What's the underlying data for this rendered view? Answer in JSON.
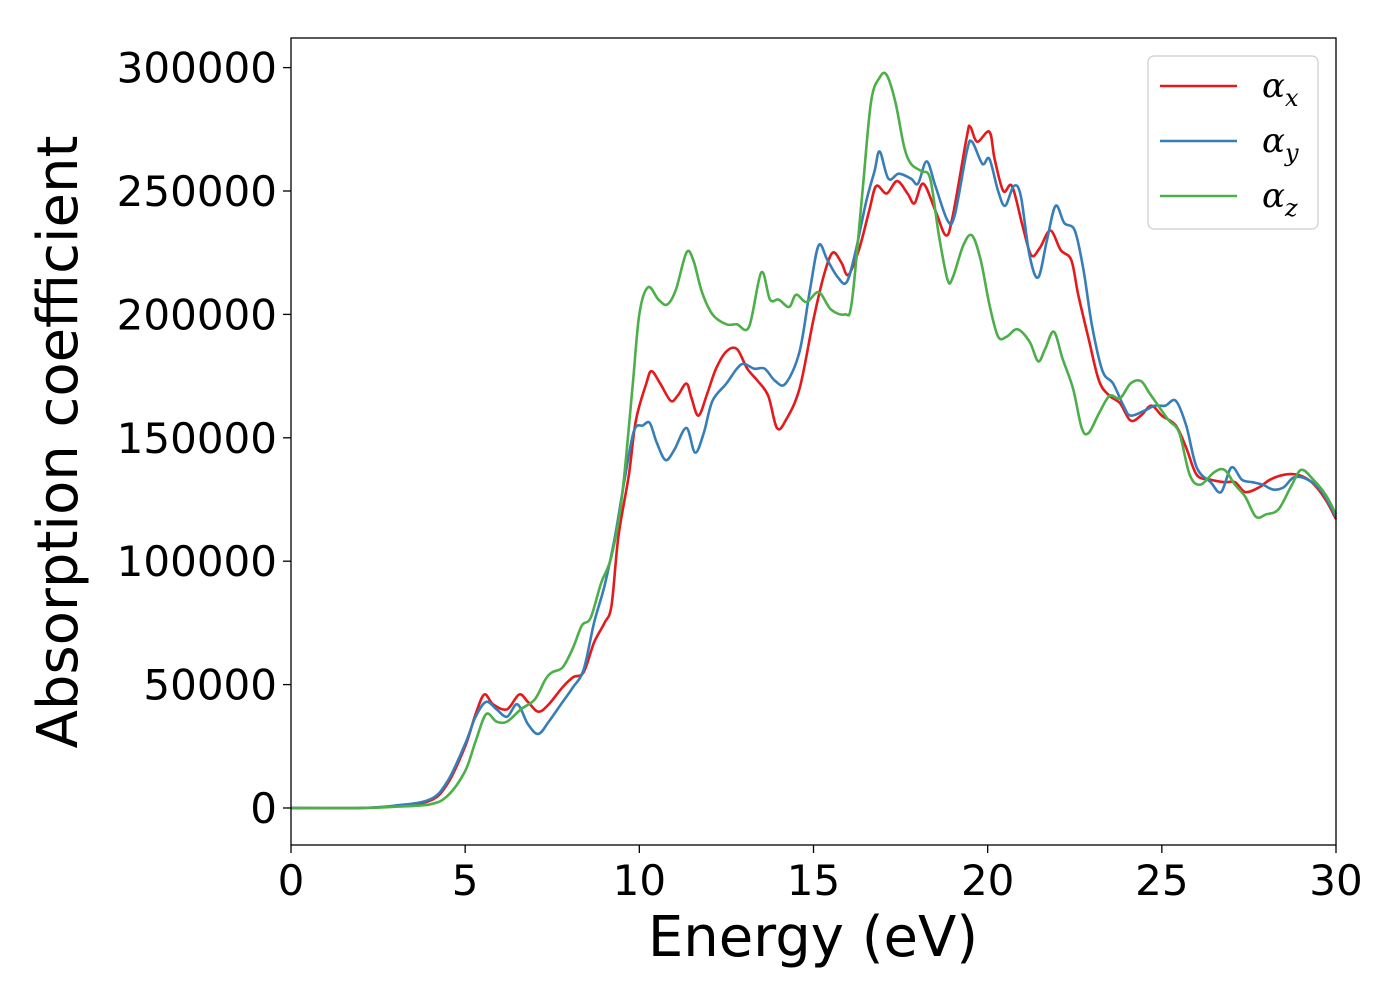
{
  "chart_data": {
    "type": "line",
    "xlabel": "Energy (eV)",
    "ylabel": "Absorption coefficient",
    "xlim": [
      0,
      30
    ],
    "ylim": [
      -15000,
      312000
    ],
    "xticks": [
      0,
      5,
      10,
      15,
      20,
      25,
      30
    ],
    "xtick_labels": [
      "0",
      "5",
      "10",
      "15",
      "20",
      "25",
      "30"
    ],
    "yticks": [
      0,
      50000,
      100000,
      150000,
      200000,
      250000,
      300000
    ],
    "ytick_labels": [
      "0",
      "50000",
      "100000",
      "150000",
      "200000",
      "250000",
      "300000"
    ],
    "grid": false,
    "legend_position": "top-right",
    "series": [
      {
        "name": "α_x",
        "label_main": "α",
        "label_sub": "x",
        "color": "#e41a1c",
        "points": [
          [
            0,
            0
          ],
          [
            2,
            0
          ],
          [
            3,
            800
          ],
          [
            4,
            3000
          ],
          [
            4.5,
            10000
          ],
          [
            5,
            25000
          ],
          [
            5.3,
            38000
          ],
          [
            5.55,
            46000
          ],
          [
            5.8,
            42000
          ],
          [
            6.2,
            40000
          ],
          [
            6.55,
            46000
          ],
          [
            6.8,
            43000
          ],
          [
            7.1,
            39000
          ],
          [
            7.4,
            42000
          ],
          [
            7.8,
            49000
          ],
          [
            8.1,
            53000
          ],
          [
            8.4,
            55000
          ],
          [
            8.7,
            67000
          ],
          [
            9.0,
            75000
          ],
          [
            9.2,
            82000
          ],
          [
            9.4,
            110000
          ],
          [
            9.7,
            135000
          ],
          [
            9.9,
            157000
          ],
          [
            10.2,
            172000
          ],
          [
            10.35,
            177000
          ],
          [
            10.6,
            172000
          ],
          [
            10.9,
            165000
          ],
          [
            11.1,
            167000
          ],
          [
            11.35,
            172000
          ],
          [
            11.5,
            166000
          ],
          [
            11.7,
            159000
          ],
          [
            11.95,
            168000
          ],
          [
            12.2,
            178000
          ],
          [
            12.5,
            185000
          ],
          [
            12.8,
            186000
          ],
          [
            13.1,
            178000
          ],
          [
            13.4,
            173000
          ],
          [
            13.7,
            167000
          ],
          [
            13.95,
            154000
          ],
          [
            14.2,
            157000
          ],
          [
            14.6,
            170000
          ],
          [
            15.0,
            198000
          ],
          [
            15.3,
            216000
          ],
          [
            15.55,
            225000
          ],
          [
            15.8,
            221000
          ],
          [
            16.0,
            216000
          ],
          [
            16.3,
            226000
          ],
          [
            16.6,
            242000
          ],
          [
            16.8,
            252000
          ],
          [
            17.1,
            249000
          ],
          [
            17.4,
            254000
          ],
          [
            17.7,
            249000
          ],
          [
            17.9,
            245000
          ],
          [
            18.15,
            253000
          ],
          [
            18.5,
            242000
          ],
          [
            18.8,
            232000
          ],
          [
            19.0,
            240000
          ],
          [
            19.4,
            272000
          ],
          [
            19.5,
            276000
          ],
          [
            19.7,
            270000
          ],
          [
            20.05,
            274000
          ],
          [
            20.2,
            263000
          ],
          [
            20.45,
            250000
          ],
          [
            20.7,
            252000
          ],
          [
            21.0,
            236000
          ],
          [
            21.25,
            224000
          ],
          [
            21.5,
            227000
          ],
          [
            21.8,
            234000
          ],
          [
            22.1,
            226000
          ],
          [
            22.4,
            222000
          ],
          [
            22.6,
            208000
          ],
          [
            22.9,
            190000
          ],
          [
            23.2,
            173000
          ],
          [
            23.5,
            167000
          ],
          [
            23.8,
            164000
          ],
          [
            24.1,
            157000
          ],
          [
            24.4,
            159000
          ],
          [
            24.7,
            163000
          ],
          [
            25.0,
            159000
          ],
          [
            25.4,
            155000
          ],
          [
            25.7,
            146000
          ],
          [
            26.0,
            135000
          ],
          [
            26.4,
            133000
          ],
          [
            26.8,
            132000
          ],
          [
            27.1,
            132000
          ],
          [
            27.4,
            128000
          ],
          [
            27.8,
            130000
          ],
          [
            28.1,
            133000
          ],
          [
            28.5,
            135000
          ],
          [
            28.9,
            135000
          ],
          [
            29.3,
            132000
          ],
          [
            29.7,
            125000
          ],
          [
            30,
            117000
          ]
        ]
      },
      {
        "name": "α_y",
        "label_main": "α",
        "label_sub": "y",
        "color": "#377eb8",
        "points": [
          [
            0,
            0
          ],
          [
            2,
            0
          ],
          [
            3,
            1000
          ],
          [
            4,
            3500
          ],
          [
            4.5,
            11000
          ],
          [
            5,
            26000
          ],
          [
            5.3,
            37000
          ],
          [
            5.6,
            43000
          ],
          [
            5.9,
            40000
          ],
          [
            6.2,
            37000
          ],
          [
            6.5,
            42000
          ],
          [
            6.8,
            34000
          ],
          [
            7.1,
            30000
          ],
          [
            7.4,
            35000
          ],
          [
            7.8,
            43000
          ],
          [
            8.1,
            49000
          ],
          [
            8.4,
            56000
          ],
          [
            8.7,
            75000
          ],
          [
            9.0,
            90000
          ],
          [
            9.3,
            110000
          ],
          [
            9.6,
            135000
          ],
          [
            9.85,
            153000
          ],
          [
            10.1,
            155000
          ],
          [
            10.3,
            156000
          ],
          [
            10.5,
            148000
          ],
          [
            10.75,
            141000
          ],
          [
            11.0,
            145000
          ],
          [
            11.35,
            154000
          ],
          [
            11.6,
            144000
          ],
          [
            11.85,
            152000
          ],
          [
            12.1,
            165000
          ],
          [
            12.5,
            172000
          ],
          [
            12.8,
            178000
          ],
          [
            13.0,
            180000
          ],
          [
            13.3,
            178000
          ],
          [
            13.6,
            178000
          ],
          [
            13.9,
            173000
          ],
          [
            14.2,
            172000
          ],
          [
            14.6,
            185000
          ],
          [
            14.9,
            210000
          ],
          [
            15.15,
            228000
          ],
          [
            15.4,
            222000
          ],
          [
            15.7,
            215000
          ],
          [
            15.95,
            213000
          ],
          [
            16.2,
            225000
          ],
          [
            16.5,
            245000
          ],
          [
            16.75,
            258000
          ],
          [
            16.9,
            266000
          ],
          [
            17.15,
            255000
          ],
          [
            17.45,
            257000
          ],
          [
            17.8,
            255000
          ],
          [
            18.0,
            253000
          ],
          [
            18.25,
            262000
          ],
          [
            18.5,
            252000
          ],
          [
            18.85,
            238000
          ],
          [
            19.05,
            240000
          ],
          [
            19.4,
            266000
          ],
          [
            19.55,
            270000
          ],
          [
            19.85,
            261000
          ],
          [
            20.05,
            263000
          ],
          [
            20.3,
            250000
          ],
          [
            20.5,
            244000
          ],
          [
            20.75,
            252000
          ],
          [
            20.95,
            248000
          ],
          [
            21.2,
            224000
          ],
          [
            21.45,
            215000
          ],
          [
            21.7,
            230000
          ],
          [
            21.95,
            244000
          ],
          [
            22.2,
            237000
          ],
          [
            22.5,
            234000
          ],
          [
            22.75,
            218000
          ],
          [
            23.0,
            195000
          ],
          [
            23.3,
            177000
          ],
          [
            23.6,
            172000
          ],
          [
            23.9,
            163000
          ],
          [
            24.1,
            159000
          ],
          [
            24.5,
            161000
          ],
          [
            24.8,
            163000
          ],
          [
            25.1,
            163000
          ],
          [
            25.4,
            165000
          ],
          [
            25.7,
            155000
          ],
          [
            26.0,
            138000
          ],
          [
            26.4,
            132000
          ],
          [
            26.7,
            128000
          ],
          [
            27.0,
            138000
          ],
          [
            27.3,
            133000
          ],
          [
            27.6,
            132000
          ],
          [
            27.9,
            131000
          ],
          [
            28.2,
            129000
          ],
          [
            28.5,
            130000
          ],
          [
            28.8,
            134000
          ],
          [
            29.2,
            133000
          ],
          [
            29.6,
            128000
          ],
          [
            30,
            118000
          ]
        ]
      },
      {
        "name": "α_z",
        "label_main": "α",
        "label_sub": "z",
        "color": "#4daf4a",
        "points": [
          [
            0,
            0
          ],
          [
            2,
            0
          ],
          [
            3,
            500
          ],
          [
            4,
            1500
          ],
          [
            4.5,
            5000
          ],
          [
            5,
            15000
          ],
          [
            5.3,
            27000
          ],
          [
            5.6,
            38000
          ],
          [
            5.9,
            35000
          ],
          [
            6.2,
            35000
          ],
          [
            6.6,
            40000
          ],
          [
            7.0,
            44000
          ],
          [
            7.3,
            52000
          ],
          [
            7.5,
            55000
          ],
          [
            7.8,
            57000
          ],
          [
            8.1,
            65000
          ],
          [
            8.35,
            74000
          ],
          [
            8.6,
            77000
          ],
          [
            8.9,
            91000
          ],
          [
            9.2,
            102000
          ],
          [
            9.5,
            126000
          ],
          [
            9.8,
            170000
          ],
          [
            10.0,
            200000
          ],
          [
            10.25,
            211000
          ],
          [
            10.55,
            206000
          ],
          [
            10.8,
            204000
          ],
          [
            11.05,
            210000
          ],
          [
            11.35,
            225000
          ],
          [
            11.55,
            222000
          ],
          [
            11.8,
            209000
          ],
          [
            12.1,
            200000
          ],
          [
            12.5,
            196000
          ],
          [
            12.8,
            196000
          ],
          [
            13.15,
            195000
          ],
          [
            13.5,
            217000
          ],
          [
            13.75,
            206000
          ],
          [
            14.0,
            206000
          ],
          [
            14.3,
            203000
          ],
          [
            14.5,
            208000
          ],
          [
            14.8,
            205000
          ],
          [
            15.15,
            209000
          ],
          [
            15.5,
            202000
          ],
          [
            15.9,
            200000
          ],
          [
            16.1,
            205000
          ],
          [
            16.4,
            249000
          ],
          [
            16.65,
            286000
          ],
          [
            16.9,
            296000
          ],
          [
            17.1,
            297000
          ],
          [
            17.35,
            286000
          ],
          [
            17.6,
            268000
          ],
          [
            17.8,
            261000
          ],
          [
            18.1,
            258000
          ],
          [
            18.35,
            255000
          ],
          [
            18.6,
            232000
          ],
          [
            18.85,
            214000
          ],
          [
            19.0,
            215000
          ],
          [
            19.3,
            228000
          ],
          [
            19.55,
            232000
          ],
          [
            19.8,
            222000
          ],
          [
            20.05,
            204000
          ],
          [
            20.3,
            191000
          ],
          [
            20.55,
            191000
          ],
          [
            20.85,
            194000
          ],
          [
            21.2,
            189000
          ],
          [
            21.45,
            181000
          ],
          [
            21.65,
            186000
          ],
          [
            21.9,
            193000
          ],
          [
            22.15,
            182000
          ],
          [
            22.45,
            170000
          ],
          [
            22.7,
            154000
          ],
          [
            22.9,
            152000
          ],
          [
            23.2,
            160000
          ],
          [
            23.5,
            167000
          ],
          [
            23.8,
            166000
          ],
          [
            24.1,
            172000
          ],
          [
            24.4,
            173000
          ],
          [
            24.65,
            168000
          ],
          [
            24.9,
            163000
          ],
          [
            25.2,
            157000
          ],
          [
            25.5,
            152000
          ],
          [
            25.8,
            135000
          ],
          [
            26.1,
            131000
          ],
          [
            26.5,
            136000
          ],
          [
            26.8,
            137000
          ],
          [
            27.1,
            131000
          ],
          [
            27.4,
            126000
          ],
          [
            27.7,
            118000
          ],
          [
            28.0,
            119000
          ],
          [
            28.35,
            121000
          ],
          [
            28.7,
            130000
          ],
          [
            29.0,
            137000
          ],
          [
            29.35,
            133000
          ],
          [
            29.7,
            127000
          ],
          [
            30,
            119000
          ]
        ]
      }
    ]
  }
}
